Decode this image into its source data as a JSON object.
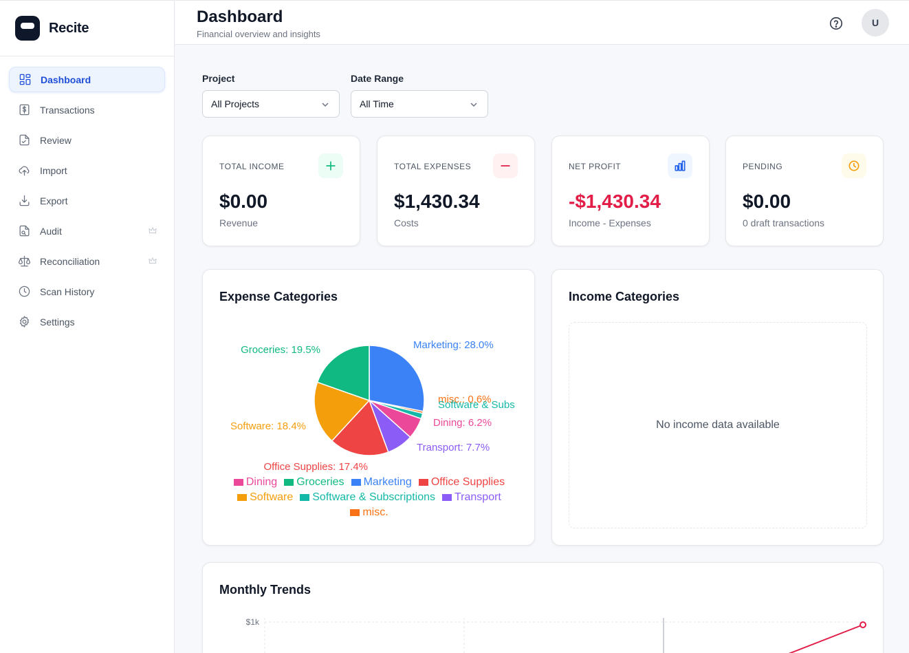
{
  "app": {
    "name": "Recite"
  },
  "sidebar": {
    "items": [
      {
        "label": "Dashboard",
        "icon": "dashboard-icon",
        "active": true
      },
      {
        "label": "Transactions",
        "icon": "dollar-icon"
      },
      {
        "label": "Review",
        "icon": "review-icon"
      },
      {
        "label": "Import",
        "icon": "upload-icon"
      },
      {
        "label": "Export",
        "icon": "download-icon"
      },
      {
        "label": "Audit",
        "icon": "audit-icon",
        "premium": true
      },
      {
        "label": "Reconciliation",
        "icon": "scale-icon",
        "premium": true
      },
      {
        "label": "Scan History",
        "icon": "clock-icon"
      },
      {
        "label": "Settings",
        "icon": "gear-icon"
      }
    ]
  },
  "header": {
    "title": "Dashboard",
    "subtitle": "Financial overview and insights",
    "avatar_initial": "U"
  },
  "filters": {
    "project_label": "Project",
    "project_value": "All Projects",
    "date_label": "Date Range",
    "date_value": "All Time"
  },
  "stats": [
    {
      "label": "TOTAL INCOME",
      "value": "$0.00",
      "sub": "Revenue",
      "icon": "plus-icon",
      "color": "#10b981",
      "bg": "#ecfdf5"
    },
    {
      "label": "TOTAL EXPENSES",
      "value": "$1,430.34",
      "sub": "Costs",
      "icon": "minus-icon",
      "color": "#e11d48",
      "bg": "#fff1f2"
    },
    {
      "label": "NET PROFIT",
      "value": "-$1,430.34",
      "sub": "Income - Expenses",
      "icon": "bar-chart-icon",
      "color": "#2563eb",
      "bg": "#eff6ff",
      "value_color": "#e11d48"
    },
    {
      "label": "PENDING",
      "value": "$0.00",
      "sub": "0 draft transactions",
      "icon": "clock-icon",
      "color": "#f59e0b",
      "bg": "#fffbeb"
    }
  ],
  "expense_categories": {
    "title": "Expense Categories"
  },
  "income_categories": {
    "title": "Income Categories",
    "empty_text": "No income data available"
  },
  "monthly_trends": {
    "title": "Monthly Trends"
  },
  "chart_data": [
    {
      "type": "pie",
      "title": "Expense Categories",
      "slices": [
        {
          "name": "Marketing",
          "value": 28.0,
          "label": "Marketing: 28.0%",
          "color": "#3b82f6"
        },
        {
          "name": "misc.",
          "value": 0.6,
          "label": "misc.: 0.6%",
          "color": "#f97316"
        },
        {
          "name": "Software & Subscriptions",
          "value": 1.6,
          "label": "Software & Subs",
          "color": "#14b8a6"
        },
        {
          "name": "Dining",
          "value": 6.2,
          "label": "Dining: 6.2%",
          "color": "#ec4899"
        },
        {
          "name": "Transport",
          "value": 7.7,
          "label": "Transport: 7.7%",
          "color": "#8b5cf6"
        },
        {
          "name": "Office Supplies",
          "value": 17.4,
          "label": "Office Supplies: 17.4%",
          "color": "#ef4444"
        },
        {
          "name": "Software",
          "value": 18.4,
          "label": "Software: 18.4%",
          "color": "#f59e0b"
        },
        {
          "name": "Groceries",
          "value": 19.5,
          "label": "Groceries: 19.5%",
          "color": "#10b981"
        }
      ],
      "legend": [
        {
          "name": "Dining",
          "color": "#ec4899"
        },
        {
          "name": "Groceries",
          "color": "#10b981"
        },
        {
          "name": "Marketing",
          "color": "#3b82f6"
        },
        {
          "name": "Office Supplies",
          "color": "#ef4444"
        },
        {
          "name": "Software",
          "color": "#f59e0b"
        },
        {
          "name": "Software & Subscriptions",
          "color": "#14b8a6"
        },
        {
          "name": "Transport",
          "color": "#8b5cf6"
        },
        {
          "name": "misc.",
          "color": "#f97316"
        }
      ],
      "legend_placement": "bottom"
    },
    {
      "type": "line",
      "title": "Monthly Trends",
      "y_tick_labels": [
        "$1k"
      ],
      "series": [
        {
          "color": "#e11d48",
          "last_value": 1000
        }
      ],
      "grid": true
    }
  ]
}
